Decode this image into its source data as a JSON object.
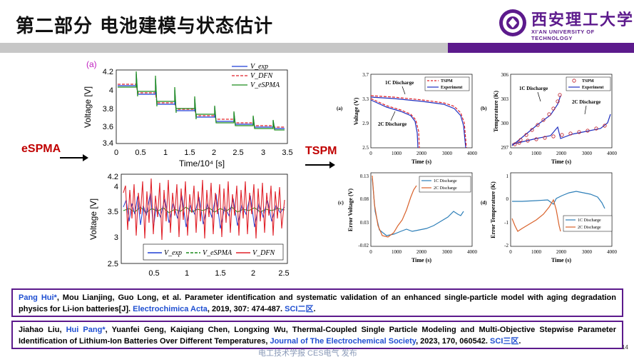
{
  "header": {
    "title": "第二部分  电池建模与状态估计",
    "logo_cn": "西安理工大学",
    "logo_en": "XI'AN UNIVERSITY OF TECHNOLOGY",
    "colors": {
      "purple": "#5c1a8c",
      "gray": "#c7c7c7"
    }
  },
  "labels": {
    "espma": "eSPMA",
    "tspm": "TSPM"
  },
  "plot_top_left": {
    "panel": "(a)",
    "xlabel": "Time/10⁴ [s]",
    "ylabel": "Voltage [V]",
    "xticks": [
      "0",
      "0.5",
      "1",
      "1.5",
      "2",
      "2.5",
      "3",
      "3.5"
    ],
    "yticks": [
      "3.4",
      "3.6",
      "3.8",
      "4",
      "4.2"
    ],
    "legend": [
      "V_exp",
      "V_DFN",
      "V_eSPMA"
    ],
    "colors": {
      "exp": "#1f3fd6",
      "dfn": "#e0222a",
      "espma": "#1c8c1c"
    }
  },
  "plot_bottom_left": {
    "ylabel": "Voltage [V]",
    "xticks": [
      "0.5",
      "1",
      "1.5",
      "2",
      "2.5"
    ],
    "yticks": [
      "2.5",
      "3",
      "3.5",
      "4",
      "4.2"
    ],
    "legend": [
      "V_exp",
      "V_eSPMA",
      "V_DFN"
    ]
  },
  "plot_a": {
    "panel": "(a)",
    "xlabel": "Time (s)",
    "ylabel": "Voltage (V)",
    "xticks": [
      "0",
      "1000",
      "2000",
      "3000",
      "4000"
    ],
    "yticks": [
      "2.5",
      "2.9",
      "3.3",
      "3.7"
    ],
    "legend": [
      "TSPM",
      "Experiment"
    ],
    "ann1": "1C Discharge",
    "ann2": "2C Discharge"
  },
  "plot_b": {
    "panel": "(b)",
    "xlabel": "Time (s)",
    "ylabel": "Temperature (K)",
    "xticks": [
      "0",
      "1000",
      "2000",
      "3000",
      "4000"
    ],
    "yticks": [
      "297",
      "300",
      "303",
      "306"
    ],
    "legend": [
      "TSPM",
      "Experiment"
    ],
    "ann1": "1C Discharge",
    "ann2": "2C Discharge"
  },
  "plot_c": {
    "panel": "(c)",
    "xlabel": "Time (s)",
    "ylabel": "Error Voltage (V)",
    "xticks": [
      "0",
      "1000",
      "2000",
      "3000",
      "4000"
    ],
    "yticks": [
      "-0.02",
      "0.03",
      "0.08",
      "0.13"
    ],
    "legend": [
      "1C Discharge",
      "2C Discharge"
    ],
    "colors": {
      "c1": "#2e7fb8",
      "c2": "#d9622b"
    }
  },
  "plot_d": {
    "panel": "(d)",
    "xlabel": "Time (s)",
    "ylabel": "Error Temperature (K)",
    "xticks": [
      "0",
      "1000",
      "2000",
      "3000",
      "4000"
    ],
    "yticks": [
      "-2",
      "-1",
      "0",
      "1"
    ],
    "legend": [
      "1C Discharge",
      "2C Discharge"
    ]
  },
  "refs": {
    "r1_author": "Pang Hui*",
    "r1_text": ", Mou Lianjing, Guo Long, et al. Parameter identification and systematic validation of an enhanced single-particle model with aging degradation physics for Li-ion batteries[J]. ",
    "r1_journal": "Electrochimica Acta",
    "r1_tail": ", 2019, 307: 474-487. ",
    "r1_sci": "SCI二区",
    "r1_end": ".",
    "r2_head": "Jiahao Liu, ",
    "r2_author": "Hui Pang*",
    "r2_text": ", Yuanfei Geng, Kaiqiang Chen, Longxing Wu, Thermal-Coupled Single Particle Modeling and Multi-Objective Stepwise Parameter Identification of Lithium-Ion Batteries Over Different Temperatures, ",
    "r2_journal": "Journal of The Electrochemical Society",
    "r2_tail": ", 2023, 170, 060542. ",
    "r2_sci": "SCI三区",
    "r2_end": "."
  },
  "footer": {
    "page": "14",
    "watermark": "电工技术学报 CES电气 发布"
  }
}
